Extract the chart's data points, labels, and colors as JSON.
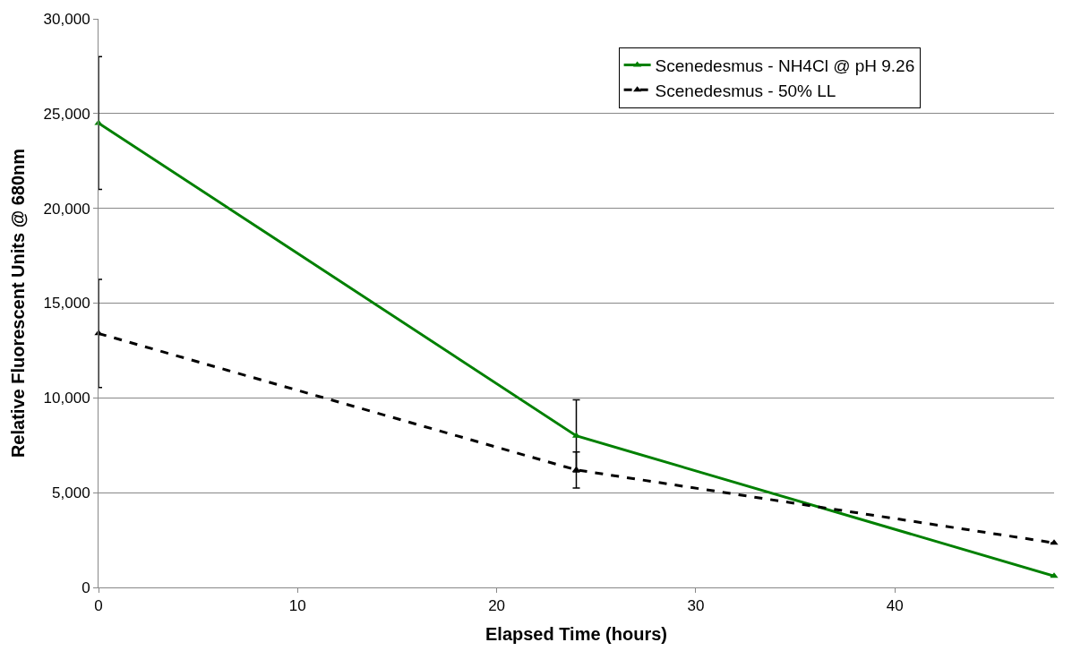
{
  "chart_data": {
    "type": "line",
    "xlabel": "Elapsed Time (hours)",
    "ylabel": "Relative Fluorescent Units @ 680nm",
    "x": [
      0,
      24,
      48
    ],
    "series": [
      {
        "name": "Scenedesmus - NH4Cl @ pH 9.26",
        "color": "#008000",
        "values": [
          24500,
          8000,
          600
        ],
        "errors": [
          3500,
          1900,
          null
        ],
        "line_style": "solid"
      },
      {
        "name": "Scenedesmus - 50% LL",
        "color": "#000000",
        "values": [
          13400,
          6200,
          2350
        ],
        "errors": [
          2850,
          950,
          null
        ],
        "line_style": "dashed"
      }
    ],
    "xlim": [
      0,
      48
    ],
    "xticks": [
      0,
      10,
      20,
      30,
      40
    ],
    "ylim": [
      0,
      30000
    ],
    "yticks": [
      {
        "value": 0,
        "label": "0"
      },
      {
        "value": 5000,
        "label": "5,000"
      },
      {
        "value": 10000,
        "label": "10,000"
      },
      {
        "value": 15000,
        "label": "15,000"
      },
      {
        "value": 20000,
        "label": "20,000"
      },
      {
        "value": 25000,
        "label": "25,000"
      },
      {
        "value": 30000,
        "label": "30,000"
      }
    ],
    "grid": "y",
    "legend": "top right",
    "marker": "triangle"
  }
}
